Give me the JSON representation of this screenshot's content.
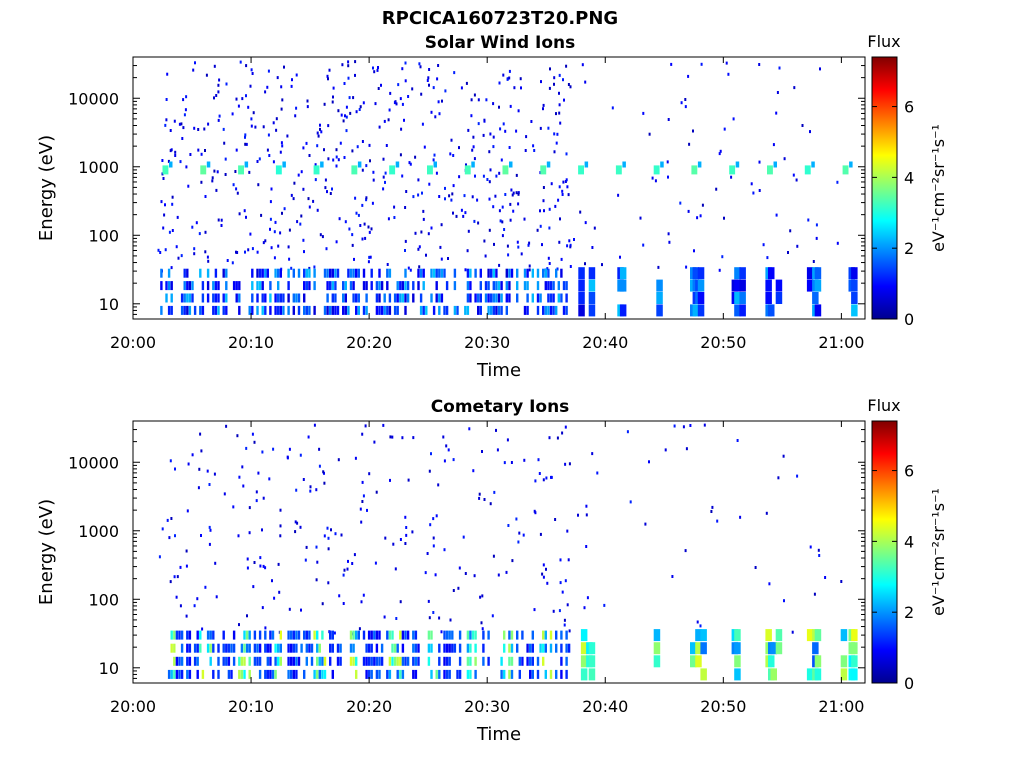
{
  "figure": {
    "title": "RPCICA160723T20.PNG"
  },
  "chart_data": [
    {
      "type": "heatmap",
      "title": "Solar Wind Ions",
      "xlabel": "Time",
      "ylabel": "Energy (eV)",
      "x_ticks": [
        "20:00",
        "20:10",
        "20:20",
        "20:30",
        "20:40",
        "20:50",
        "21:00"
      ],
      "xlim": [
        "20:00",
        "21:02"
      ],
      "y_scale": "log",
      "y_ticks": [
        "10",
        "100",
        "1000",
        "10000"
      ],
      "ylim": [
        6,
        40000
      ],
      "colorbar": {
        "label": "Flux",
        "unit": "eV⁻¹cm⁻²sr⁻¹s⁻¹",
        "ticks": [
          "0",
          "2",
          "4",
          "6"
        ],
        "range": [
          0,
          7.4
        ],
        "colormap": "jet"
      },
      "features": {
        "beam_energy_eV": 900,
        "beam_flux": 3,
        "beam_repeat_min": 3.2,
        "low_energy_band_eV": [
          8,
          28
        ],
        "data_gap_start": "20:37",
        "scattered_background": true
      }
    },
    {
      "type": "heatmap",
      "title": "Cometary Ions",
      "xlabel": "Time",
      "ylabel": "Energy (eV)",
      "x_ticks": [
        "20:00",
        "20:10",
        "20:20",
        "20:30",
        "20:40",
        "20:50",
        "21:00"
      ],
      "xlim": [
        "20:00",
        "21:02"
      ],
      "y_scale": "log",
      "y_ticks": [
        "10",
        "100",
        "1000",
        "10000"
      ],
      "ylim": [
        6,
        40000
      ],
      "colorbar": {
        "label": "Flux",
        "unit": "eV⁻¹cm⁻²sr⁻¹s⁻¹",
        "ticks": [
          "0",
          "2",
          "4",
          "6"
        ],
        "range": [
          0,
          7.4
        ],
        "colormap": "jet"
      },
      "features": {
        "low_energy_band_eV": [
          8,
          30
        ],
        "low_energy_flux_peak": 4,
        "low_energy_repeat_min": 3.2,
        "data_gap_start": "20:37",
        "scattered_background": true
      }
    }
  ]
}
